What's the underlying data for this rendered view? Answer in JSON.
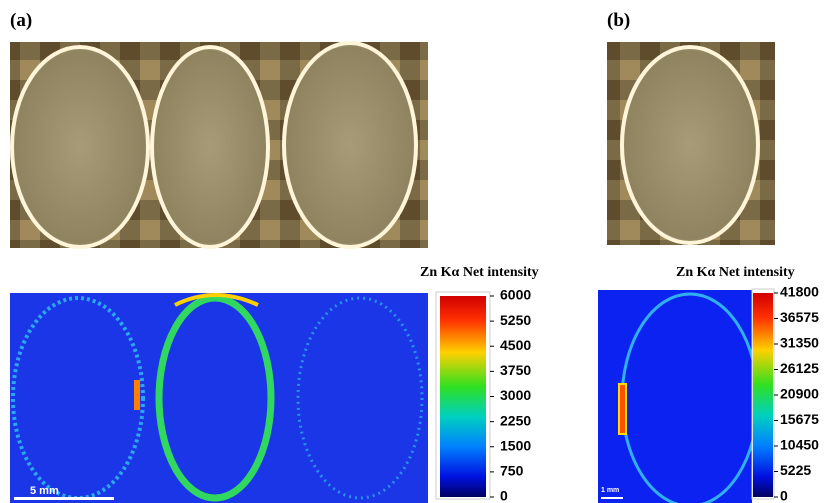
{
  "panels": [
    {
      "label": "(a)",
      "colorbar": {
        "title": "Zn Kα Net intensity",
        "range": [
          0,
          6000
        ],
        "ticks": [
          6000,
          5250,
          4500,
          3750,
          3000,
          2250,
          1500,
          750,
          0
        ]
      },
      "scale_bar": "5 mm"
    },
    {
      "label": "(b)",
      "colorbar": {
        "title": "Zn Kα Net intensity",
        "range": [
          0,
          41800
        ],
        "ticks": [
          41800,
          36575,
          31350,
          26125,
          20900,
          15675,
          10450,
          5225,
          0
        ]
      },
      "scale_bar": "1 mm"
    }
  ]
}
